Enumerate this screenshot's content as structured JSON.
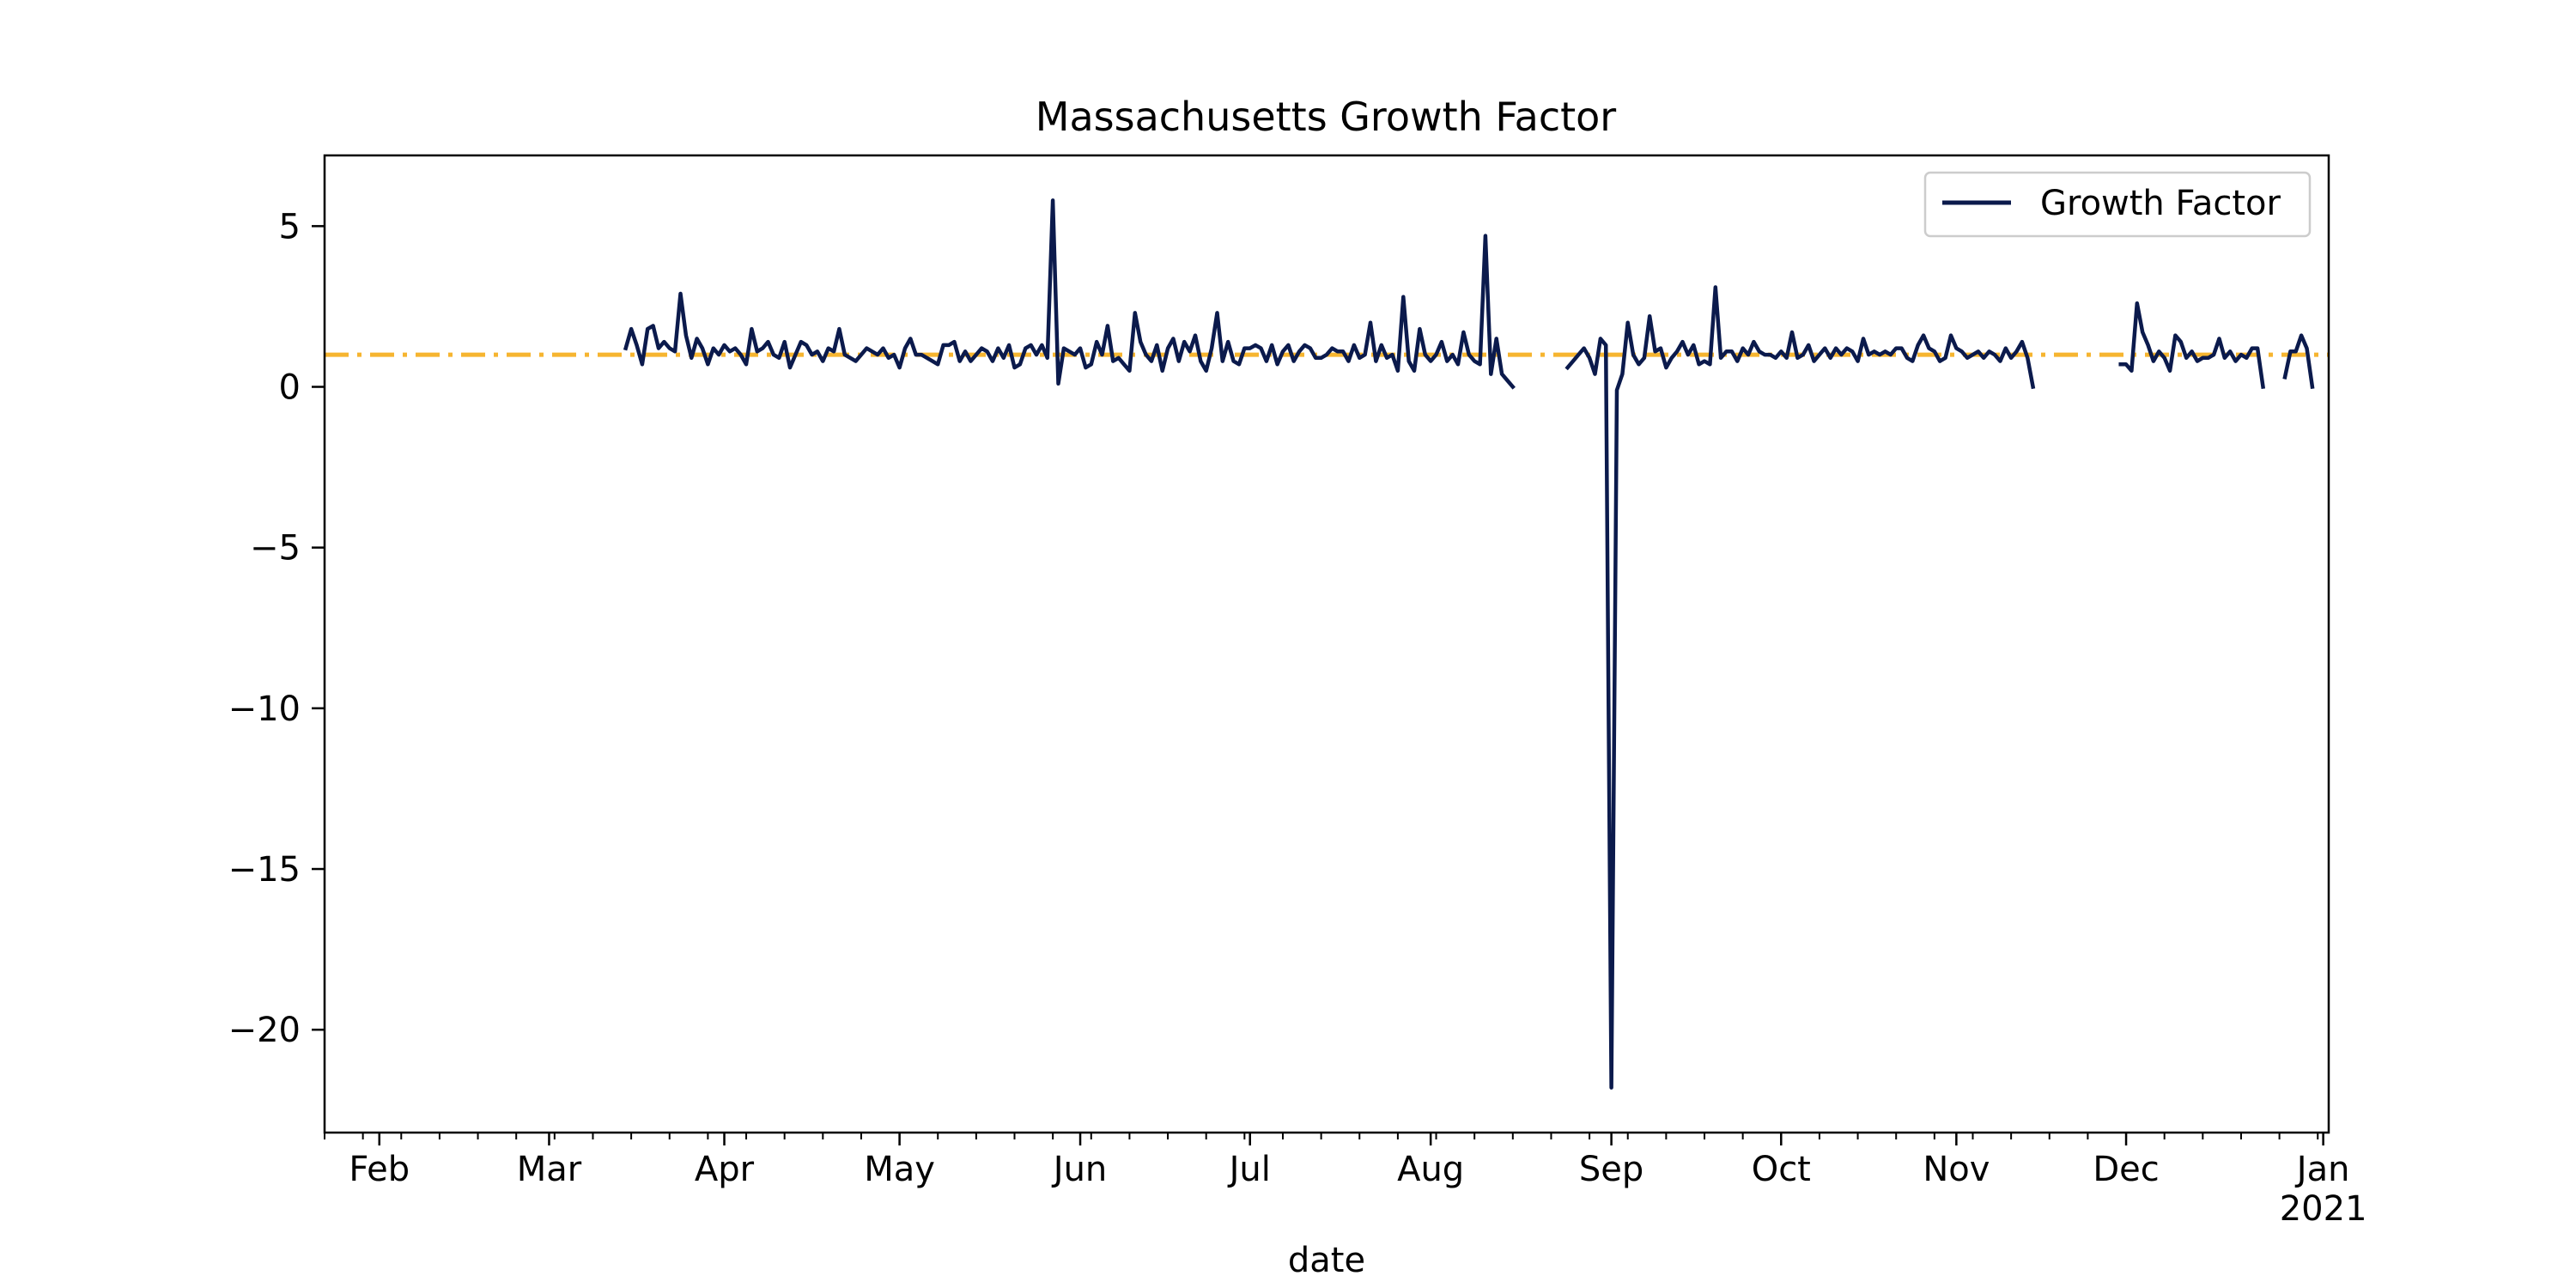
{
  "chart_data": {
    "type": "line",
    "title": "Massachusetts Growth Factor",
    "xlabel": "date",
    "ylabel": "",
    "ylim": [
      -23.2,
      7.2
    ],
    "xlim_day": [
      0,
      366
    ],
    "grid": false,
    "legend": {
      "position": "top-right",
      "entries": [
        "Growth Factor"
      ]
    },
    "x_ticks": [
      {
        "label": "Feb",
        "day": 10
      },
      {
        "label": "Mar",
        "day": 41
      },
      {
        "label": "Apr",
        "day": 73
      },
      {
        "label": "May",
        "day": 105
      },
      {
        "label": "Jun",
        "day": 138
      },
      {
        "label": "Jul",
        "day": 169
      },
      {
        "label": "Aug",
        "day": 202
      },
      {
        "label": "Sep",
        "day": 235
      },
      {
        "label": "Oct",
        "day": 266
      },
      {
        "label": "Nov",
        "day": 298
      },
      {
        "label": "Dec",
        "day": 329
      },
      {
        "label": "Jan",
        "day": 365
      }
    ],
    "x_tick_year": {
      "label": "2021",
      "day": 365
    },
    "y_ticks": [
      5,
      0,
      -5,
      -10,
      -15,
      -20
    ],
    "y_tick_labels": [
      "5",
      "0",
      "−5",
      "−10",
      "−15",
      "−20"
    ],
    "reference_line": {
      "y": 1.0,
      "color": "#f6b530",
      "style": "dash-dot"
    },
    "series": [
      {
        "name": "Growth Factor",
        "color": "#0b1a4c",
        "segments": [
          {
            "start_day": 55,
            "values": [
              1.2,
              1.8,
              1.3,
              0.7,
              1.8,
              1.9,
              1.2,
              1.4,
              1.2,
              1.1,
              2.9,
              1.6,
              0.9,
              1.5,
              1.2,
              0.7,
              1.2,
              1.0,
              1.3,
              1.1,
              1.2,
              1.0,
              0.7,
              1.8,
              1.1,
              1.2,
              1.4,
              1.0,
              0.9,
              1.4,
              0.6,
              1.0,
              1.4,
              1.3,
              1.0,
              1.1,
              0.8,
              1.2,
              1.1,
              1.8,
              1.0,
              0.9,
              0.8,
              1.0,
              1.2,
              1.1,
              1.0,
              1.2,
              0.9,
              1.0,
              0.6,
              1.2,
              1.5,
              1.0,
              1.0,
              0.9,
              0.8,
              0.7,
              1.3,
              1.3,
              1.4,
              0.8,
              1.1,
              0.8,
              1.0,
              1.2,
              1.1,
              0.8,
              1.2,
              0.9,
              1.3,
              0.6,
              0.7,
              1.2,
              1.3,
              1.0,
              1.3,
              0.9,
              5.8,
              0.1,
              1.2,
              1.1,
              1.0,
              1.2,
              0.6,
              0.7,
              1.4,
              1.0,
              1.9,
              0.8,
              0.9,
              0.7,
              0.5,
              2.3,
              1.4,
              1.0,
              0.8,
              1.3,
              0.5,
              1.2,
              1.5,
              0.8,
              1.4,
              1.1,
              1.6,
              0.8,
              0.5,
              1.2,
              2.3,
              0.8,
              1.4,
              0.8,
              0.7,
              1.2,
              1.2,
              1.3,
              1.2,
              0.8,
              1.3,
              0.7,
              1.1,
              1.3,
              0.8,
              1.1,
              1.3,
              1.2,
              0.9,
              0.9,
              1.0,
              1.2,
              1.1,
              1.1,
              0.8,
              1.3,
              0.9,
              1.0,
              2.0,
              0.8,
              1.3,
              0.9,
              1.0,
              0.5,
              2.8,
              0.8,
              0.5,
              1.8,
              1.0,
              0.8,
              1.0,
              1.4,
              0.8,
              1.0,
              0.7,
              1.7,
              1.0,
              0.8,
              0.7,
              4.7,
              0.4,
              1.5,
              0.4,
              0.2,
              0.0
            ]
          },
          {
            "start_day": 227,
            "values": [
              0.6,
              0.8,
              1.0,
              1.2,
              0.9,
              0.4,
              1.5,
              1.3,
              -21.8,
              -0.1,
              0.4,
              2.0,
              1.0,
              0.7,
              0.9,
              2.2,
              1.1,
              1.2,
              0.6,
              0.9,
              1.1,
              1.4,
              1.0,
              1.3,
              0.7,
              0.8,
              0.7,
              3.1,
              0.9,
              1.1,
              1.1,
              0.8,
              1.2,
              1.0,
              1.4,
              1.1,
              1.0,
              1.0,
              0.9,
              1.1,
              0.9,
              1.7,
              0.9,
              1.0,
              1.3,
              0.8,
              1.0,
              1.2,
              0.9,
              1.2,
              1.0,
              1.2,
              1.1,
              0.8,
              1.5,
              1.0,
              1.1,
              1.0,
              1.1,
              1.0,
              1.2,
              1.2,
              0.9,
              0.8,
              1.3,
              1.6,
              1.2,
              1.1,
              0.8,
              0.9,
              1.6,
              1.2,
              1.1,
              0.9,
              1.0,
              1.1,
              0.9,
              1.1,
              1.0,
              0.8,
              1.2,
              0.9,
              1.1,
              1.4,
              0.9,
              0.0
            ]
          },
          {
            "start_day": 328,
            "values": [
              0.7,
              0.7,
              0.5,
              2.6,
              1.7,
              1.3,
              0.8,
              1.1,
              0.9,
              0.5,
              1.6,
              1.4,
              0.9,
              1.1,
              0.8,
              0.9,
              0.9,
              1.0,
              1.5,
              0.9,
              1.1,
              0.8,
              1.0,
              0.9,
              1.2,
              1.2,
              0.0
            ]
          },
          {
            "start_day": 358,
            "values": [
              0.3,
              1.1,
              1.1,
              1.6,
              1.2,
              0.0
            ]
          }
        ]
      }
    ]
  }
}
